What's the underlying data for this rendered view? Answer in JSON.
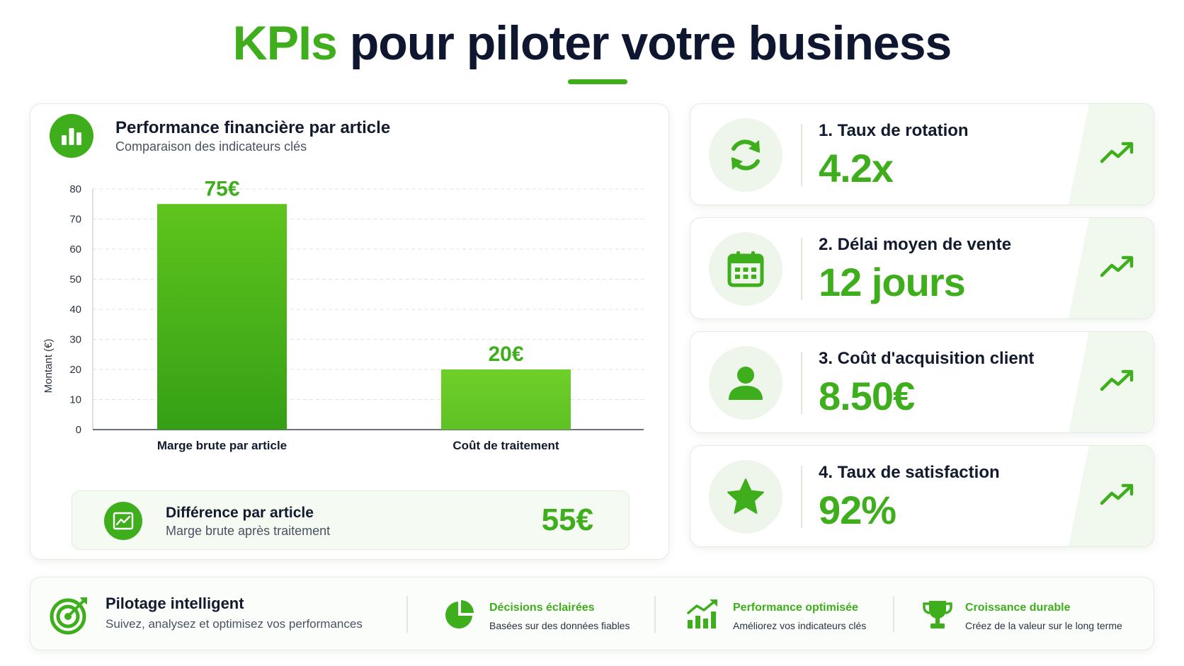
{
  "page": {
    "title_accent": "KPIs",
    "title_rest": " pour piloter votre business"
  },
  "colors": {
    "accent": "#3fae1c",
    "accent_light": "#6ccf2e",
    "text_dark": "#0f1630"
  },
  "chart_card": {
    "title": "Performance financière par article",
    "subtitle": "Comparaison des indicateurs clés",
    "icon": "bar-chart-icon"
  },
  "chart_data": {
    "type": "bar",
    "categories": [
      "Marge brute par article",
      "Coût de traitement"
    ],
    "values": [
      75,
      20
    ],
    "data_labels": [
      "75€",
      "20€"
    ],
    "ylabel": "Montant (€)",
    "ylim": [
      0,
      80
    ],
    "yticks": [
      0,
      10,
      20,
      30,
      40,
      50,
      60,
      70,
      80
    ],
    "grid": true
  },
  "difference": {
    "title": "Différence par article",
    "subtitle": "Marge brute après traitement",
    "value": "55€",
    "icon": "trend-chart-icon"
  },
  "kpis": [
    {
      "label": "1. Taux de rotation",
      "value": "4.2x",
      "icon": "refresh-icon"
    },
    {
      "label": "2. Délai moyen de vente",
      "value": "12 jours",
      "icon": "calendar-icon"
    },
    {
      "label": "3. Coût d'acquisition client",
      "value": "8.50€",
      "icon": "user-icon"
    },
    {
      "label": "4. Taux de satisfaction",
      "value": "92%",
      "icon": "star-icon"
    }
  ],
  "footer": {
    "main": {
      "title": "Pilotage intelligent",
      "subtitle": "Suivez, analysez et optimisez vos performances",
      "icon": "target-icon"
    },
    "items": [
      {
        "title": "Décisions éclairées",
        "subtitle": "Basées sur des données fiables",
        "icon": "pie-chart-icon"
      },
      {
        "title": "Performance optimisée",
        "subtitle": "Améliorez vos indicateurs clés",
        "icon": "growth-chart-icon"
      },
      {
        "title": "Croissance durable",
        "subtitle": "Créez de la valeur sur le long terme",
        "icon": "trophy-icon"
      }
    ]
  }
}
